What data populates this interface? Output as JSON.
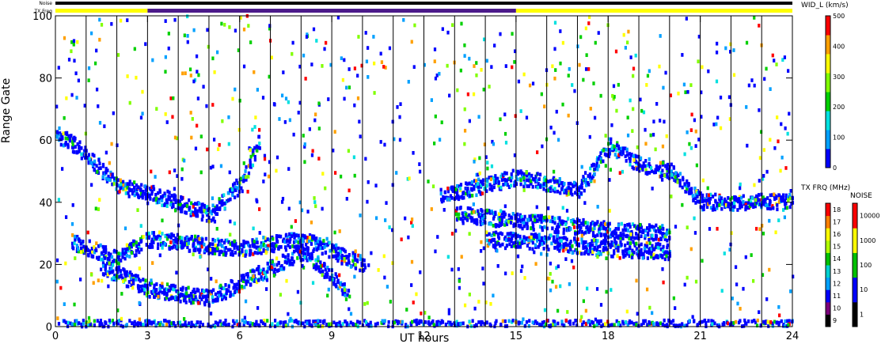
{
  "chart_data": {
    "type": "heatmap",
    "title": "",
    "xlabel": "UT hours",
    "ylabel": "Range Gate",
    "xlim": [
      0,
      24
    ],
    "ylim": [
      0,
      100
    ],
    "x_ticks": [
      "0",
      "3",
      "6",
      "9",
      "12",
      "15",
      "18",
      "21",
      "24"
    ],
    "y_ticks": [
      "0",
      "20",
      "40",
      "60",
      "80",
      "100"
    ],
    "scan_boundaries_hours": [
      1.0,
      2.0,
      3.0,
      4.0,
      5.0,
      6.0,
      7.0,
      8.0,
      9.0,
      10.0,
      11.0,
      12.0,
      13.0,
      14.0,
      15.0,
      16.0,
      17.0,
      18.0,
      19.0,
      20.0,
      21.0,
      22.0,
      23.0
    ],
    "top_strips": {
      "noise_label": "Noise",
      "txfreq_label": "TX Freq",
      "txfreq_segments": [
        {
          "from": 0,
          "to": 3,
          "color": "#ffff00"
        },
        {
          "from": 3,
          "to": 15,
          "color": "#4b1a8a"
        },
        {
          "from": 15,
          "to": 24,
          "color": "#ffff00"
        }
      ]
    },
    "parameter": "WID_L (km/s)",
    "colorbar_wid": {
      "label": "WID_L (km/s)",
      "ticks": [
        "0",
        "100",
        "200",
        "300",
        "400",
        "500"
      ],
      "colors": [
        "#0000ff",
        "#00a0ff",
        "#00e0e0",
        "#00d000",
        "#80ff00",
        "#ffff00",
        "#ffa000",
        "#ff0000"
      ]
    },
    "colorbar_txfrq": {
      "label": "TX FRQ (MHz)",
      "ticks": [
        "9",
        "10",
        "11",
        "12",
        "13",
        "14",
        "15",
        "16",
        "17",
        "18"
      ],
      "colors": [
        "#000000",
        "#7a007a",
        "#0000ff",
        "#00a0ff",
        "#00d0d0",
        "#00c000",
        "#b0ff00",
        "#ffff00",
        "#ff8000",
        "#ff0000"
      ]
    },
    "colorbar_noise": {
      "label": "NOISE",
      "ticks": [
        "1",
        "10",
        "100",
        "1000",
        "10000"
      ],
      "colors": [
        "#000000",
        "#0000ff",
        "#00c000",
        "#ffff00",
        "#ff0000"
      ]
    },
    "series": [
      {
        "band": "upper",
        "points": [
          [
            0,
            62
          ],
          [
            1,
            55
          ],
          [
            2,
            45
          ],
          [
            3,
            43
          ],
          [
            5,
            36
          ],
          [
            6,
            46
          ],
          [
            6.6,
            60
          ]
        ]
      },
      {
        "band": "middle",
        "points": [
          [
            0.5,
            27
          ],
          [
            2,
            22
          ],
          [
            3,
            28
          ],
          [
            5,
            26
          ],
          [
            6,
            25
          ],
          [
            8,
            28
          ],
          [
            10,
            20
          ]
        ]
      },
      {
        "band": "lower",
        "points": [
          [
            1.5,
            19
          ],
          [
            3,
            12
          ],
          [
            5,
            9
          ],
          [
            6,
            14
          ],
          [
            8,
            24
          ],
          [
            9,
            16
          ],
          [
            9.5,
            10
          ]
        ]
      },
      {
        "band": "ground",
        "points": [
          [
            0,
            1
          ],
          [
            24,
            1
          ]
        ]
      },
      {
        "band": "afternoon",
        "points": [
          [
            12.5,
            42
          ],
          [
            15,
            48
          ],
          [
            16,
            46
          ],
          [
            17,
            44
          ],
          [
            18,
            58
          ],
          [
            19,
            52
          ],
          [
            20,
            50
          ],
          [
            21,
            40
          ],
          [
            24,
            40
          ]
        ]
      },
      {
        "band": "late-mid",
        "points": [
          [
            13,
            36
          ],
          [
            15,
            34
          ],
          [
            18,
            31
          ],
          [
            20,
            30
          ]
        ]
      },
      {
        "band": "late-low",
        "points": [
          [
            14,
            28
          ],
          [
            16,
            27
          ],
          [
            18,
            25
          ],
          [
            20,
            24
          ]
        ]
      }
    ]
  }
}
